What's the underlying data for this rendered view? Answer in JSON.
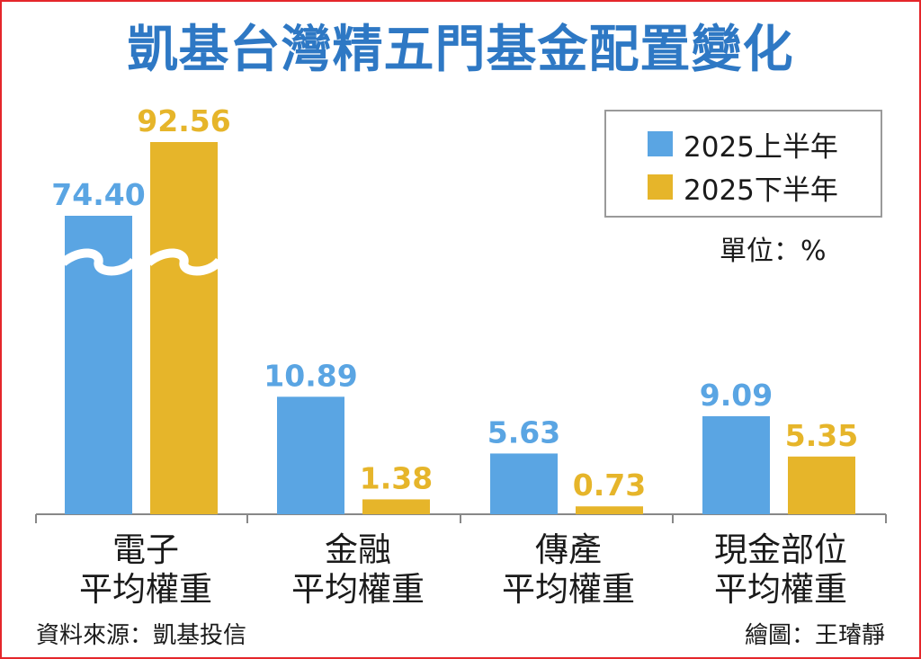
{
  "title": "凱基台灣精五門基金配置變化",
  "unit": "單位：%",
  "source": "資料來源：凱基投信",
  "credit": "繪圖：王璿靜",
  "colors": {
    "first_half": "#5aa5e3",
    "second_half": "#e6b52a",
    "frame": "#e5262b",
    "title": "#2e78c4",
    "value_label": "#5aa5e3",
    "value_label_2": "#e6b52a"
  },
  "chart_data": {
    "type": "bar",
    "title": "凱基台灣精五門基金配置變化",
    "categories": [
      [
        "電子",
        "平均權重"
      ],
      [
        "金融",
        "平均權重"
      ],
      [
        "傳產",
        "平均權重"
      ],
      [
        "現金部位",
        "平均權重"
      ]
    ],
    "series": [
      {
        "name": "2025上半年",
        "values": [
          74.4,
          10.89,
          5.63,
          9.09
        ],
        "labels": [
          "74.40",
          "10.89",
          "5.63",
          "9.09"
        ]
      },
      {
        "name": "2025下半年",
        "values": [
          92.56,
          1.38,
          0.73,
          5.35
        ],
        "labels": [
          "92.56",
          "1.38",
          "0.73",
          "5.35"
        ]
      }
    ],
    "axis_break": true,
    "legend_position": "top-right",
    "ylabel": "",
    "xlabel": ""
  }
}
